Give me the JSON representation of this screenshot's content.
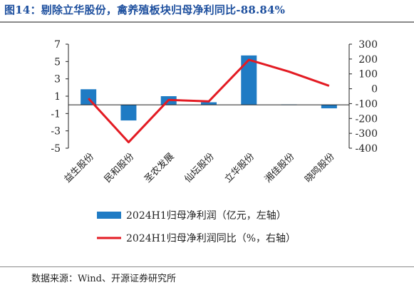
{
  "title": "图14：剔除立华股份，禽养殖板块归母净利同比-88.84%",
  "source": "数据来源：Wind、开源证券研究所",
  "colors": {
    "bar": "#1f7bc4",
    "line": "#e31b23",
    "title": "#1d4f9e"
  },
  "chart_data": {
    "type": "bar",
    "categories": [
      "益生股份",
      "民和股份",
      "圣农发展",
      "仙坛股份",
      "立华股份",
      "湘佳股份",
      "晓鸣股份"
    ],
    "series": [
      {
        "name": "2024H1归母净利润（亿元，左轴）",
        "type": "bar",
        "axis": "left",
        "values": [
          1.8,
          -1.8,
          1.0,
          0.3,
          5.7,
          0.05,
          -0.4
        ]
      },
      {
        "name": "2024H1归母净利润同比（%，右轴）",
        "type": "line",
        "axis": "right",
        "values": [
          -65,
          -360,
          -75,
          -85,
          195,
          115,
          20
        ]
      }
    ],
    "left_axis": {
      "ylim": [
        -5,
        7
      ],
      "ticks": [
        "7",
        "5",
        "3",
        "1",
        "-1",
        "-3",
        "-5"
      ]
    },
    "right_axis": {
      "ylim": [
        -400,
        300
      ],
      "ticks": [
        "300",
        "200",
        "100",
        "0",
        "-100",
        "-200",
        "-300",
        "-400"
      ]
    },
    "legend_position": "bottom",
    "grid": false
  }
}
